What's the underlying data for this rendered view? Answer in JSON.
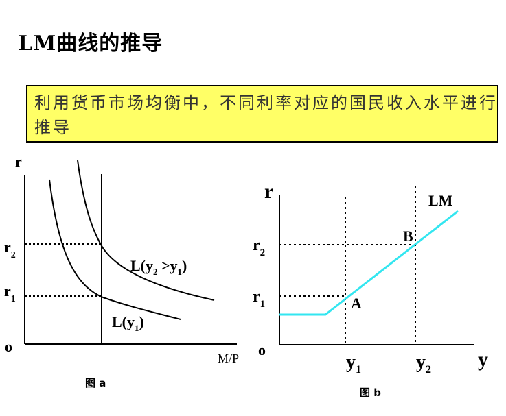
{
  "title": "LM曲线的推导",
  "note": "利用货币市场均衡中，不同利率对应的国民收入水平进行推导",
  "figure_a": {
    "caption": "图 a",
    "y_axis_label": "r",
    "x_axis_label": "M/P",
    "origin_label": "o",
    "r2_main": "r",
    "r2_sub": "2",
    "r1_main": "r",
    "r1_sub": "1",
    "curve_upper": {
      "l": "L(y",
      "s1": "2",
      "mid": " >y",
      "s2": "1",
      "r": ")"
    },
    "curve_lower": {
      "l": "L(y",
      "s1": "1",
      "r": ")"
    }
  },
  "figure_b": {
    "caption": "图 b",
    "y_axis_label": "r",
    "x_axis_label": "y",
    "origin_label": "o",
    "r2_main": "r",
    "r2_sub": "2",
    "r1_main": "r",
    "r1_sub": "1",
    "y1_main": "y",
    "y1_sub": "1",
    "y2_main": "y",
    "y2_sub": "2",
    "curve_label": "LM",
    "point_a": "A",
    "point_b": "B"
  },
  "colors": {
    "lm_curve": "#33e6f0",
    "callout_bg": "#ffff66",
    "callout_text": "#333333"
  }
}
